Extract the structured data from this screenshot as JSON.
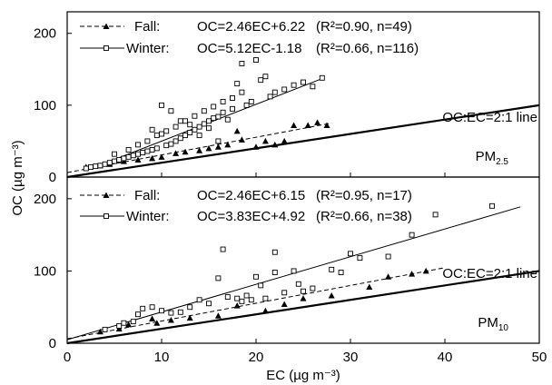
{
  "chart_data": [
    {
      "type": "scatter",
      "panel_label": "PM",
      "panel_label_sub": "2.5",
      "xlim": [
        0,
        50
      ],
      "ylim": [
        0,
        230
      ],
      "yticks": [
        "0",
        "100",
        "200"
      ],
      "reference_line": {
        "label": "OC:EC=2:1 line",
        "slope": 2,
        "intercept": 0
      },
      "series": [
        {
          "name": "Fall",
          "equation": "OC=2.46EC+6.22",
          "stats": "(R²=0.90, n=49)",
          "fit": {
            "slope": 2.46,
            "intercept": 6.22,
            "x_range": [
              0,
              28
            ]
          },
          "x": [
            2,
            3.5,
            4.5,
            6,
            7.5,
            9,
            10,
            11.5,
            12.5,
            14,
            15,
            16,
            17,
            18,
            18.5,
            20,
            21,
            22,
            23,
            24,
            25.5,
            26.5,
            27.5
          ],
          "y": [
            14,
            16,
            18,
            22,
            24,
            26,
            28,
            33,
            35,
            37,
            40,
            42,
            45,
            64,
            52,
            42,
            50,
            45,
            50,
            72,
            72,
            76,
            72
          ]
        },
        {
          "name": "Winter",
          "equation": "OC=5.12EC-1.18",
          "stats": "(R²=0.66, n=116)",
          "fit": {
            "slope": 5.12,
            "intercept": -1.18,
            "x_range": [
              2,
              27
            ]
          },
          "x": [
            2,
            2.5,
            3,
            3.5,
            4,
            4.5,
            5,
            5.5,
            6,
            6.5,
            7,
            7.5,
            8,
            8.5,
            9,
            9.5,
            10,
            10.5,
            11,
            11.5,
            12,
            12.5,
            13,
            13.5,
            14,
            14.5,
            15,
            15.5,
            16,
            16.5,
            17,
            17.5,
            18,
            18.5,
            19,
            19.5,
            20,
            20.5,
            21,
            21.5,
            22,
            23,
            24,
            25,
            26,
            27,
            5,
            6.5,
            7.5,
            8.5,
            9.5,
            10.5,
            11.5,
            12.5,
            13.5,
            14.5,
            15.5,
            16.5,
            17.5,
            18.5,
            9,
            10,
            11,
            12,
            13,
            14,
            15,
            16
          ],
          "y": [
            12,
            14,
            15,
            16,
            18,
            20,
            22,
            24,
            26,
            28,
            30,
            32,
            34,
            36,
            38,
            40,
            60,
            44,
            46,
            50,
            54,
            58,
            62,
            66,
            70,
            74,
            78,
            82,
            84,
            90,
            80,
            95,
            130,
            158,
            100,
            105,
            163,
            135,
            140,
            112,
            118,
            122,
            128,
            132,
            126,
            138,
            32,
            38,
            45,
            50,
            58,
            64,
            70,
            78,
            85,
            92,
            98,
            105,
            110,
            118,
            66,
            100,
            92,
            78,
            73,
            58,
            68,
            50
          ]
        }
      ]
    },
    {
      "type": "scatter",
      "panel_label": "PM",
      "panel_label_sub": "10",
      "xlim": [
        0,
        50
      ],
      "ylim": [
        0,
        230
      ],
      "yticks": [
        "0",
        "100",
        "200"
      ],
      "xticks": [
        "0",
        "10",
        "20",
        "30",
        "40",
        "50"
      ],
      "reference_line": {
        "label": "OC:EC=2:1 line",
        "slope": 2,
        "intercept": 0
      },
      "series": [
        {
          "name": "Fall",
          "equation": "OC=2.46EC+6.15",
          "stats": "(R²=0.95, n=17)",
          "fit": {
            "slope": 2.46,
            "intercept": 6.15,
            "x_range": [
              0,
              40
            ]
          },
          "x": [
            3.5,
            5.5,
            6.5,
            9,
            9.5,
            11,
            13,
            16,
            18,
            21,
            23,
            25,
            28,
            32,
            34,
            36.5,
            38
          ],
          "y": [
            16,
            20,
            26,
            34,
            28,
            32,
            35,
            38,
            52,
            45,
            54,
            62,
            66,
            78,
            92,
            96,
            100
          ]
        },
        {
          "name": "Winter",
          "equation": "OC=3.83EC+4.92",
          "stats": "(R²=0.66, n=38)",
          "fit": {
            "slope": 3.83,
            "intercept": 4.92,
            "x_range": [
              0,
              48
            ]
          },
          "x": [
            4,
            5.5,
            6,
            7,
            7.5,
            8,
            9,
            10,
            11,
            12,
            13,
            14,
            15,
            16,
            16.5,
            17,
            18,
            18.5,
            19,
            19.5,
            20,
            20.5,
            21,
            22,
            22,
            23,
            24,
            24.5,
            25,
            26,
            28,
            29,
            30,
            31,
            34,
            36.5,
            39,
            45
          ],
          "y": [
            19,
            24,
            28,
            30,
            40,
            48,
            50,
            45,
            42,
            43,
            50,
            60,
            55,
            90,
            130,
            64,
            62,
            58,
            66,
            60,
            92,
            80,
            62,
            126,
            98,
            70,
            100,
            82,
            72,
            76,
            102,
            98,
            124,
            118,
            120,
            150,
            178,
            190
          ]
        }
      ]
    }
  ],
  "axes": {
    "ylabel": "OC (µg m⁻³)",
    "xlabel": "EC (µg m⁻³)"
  }
}
